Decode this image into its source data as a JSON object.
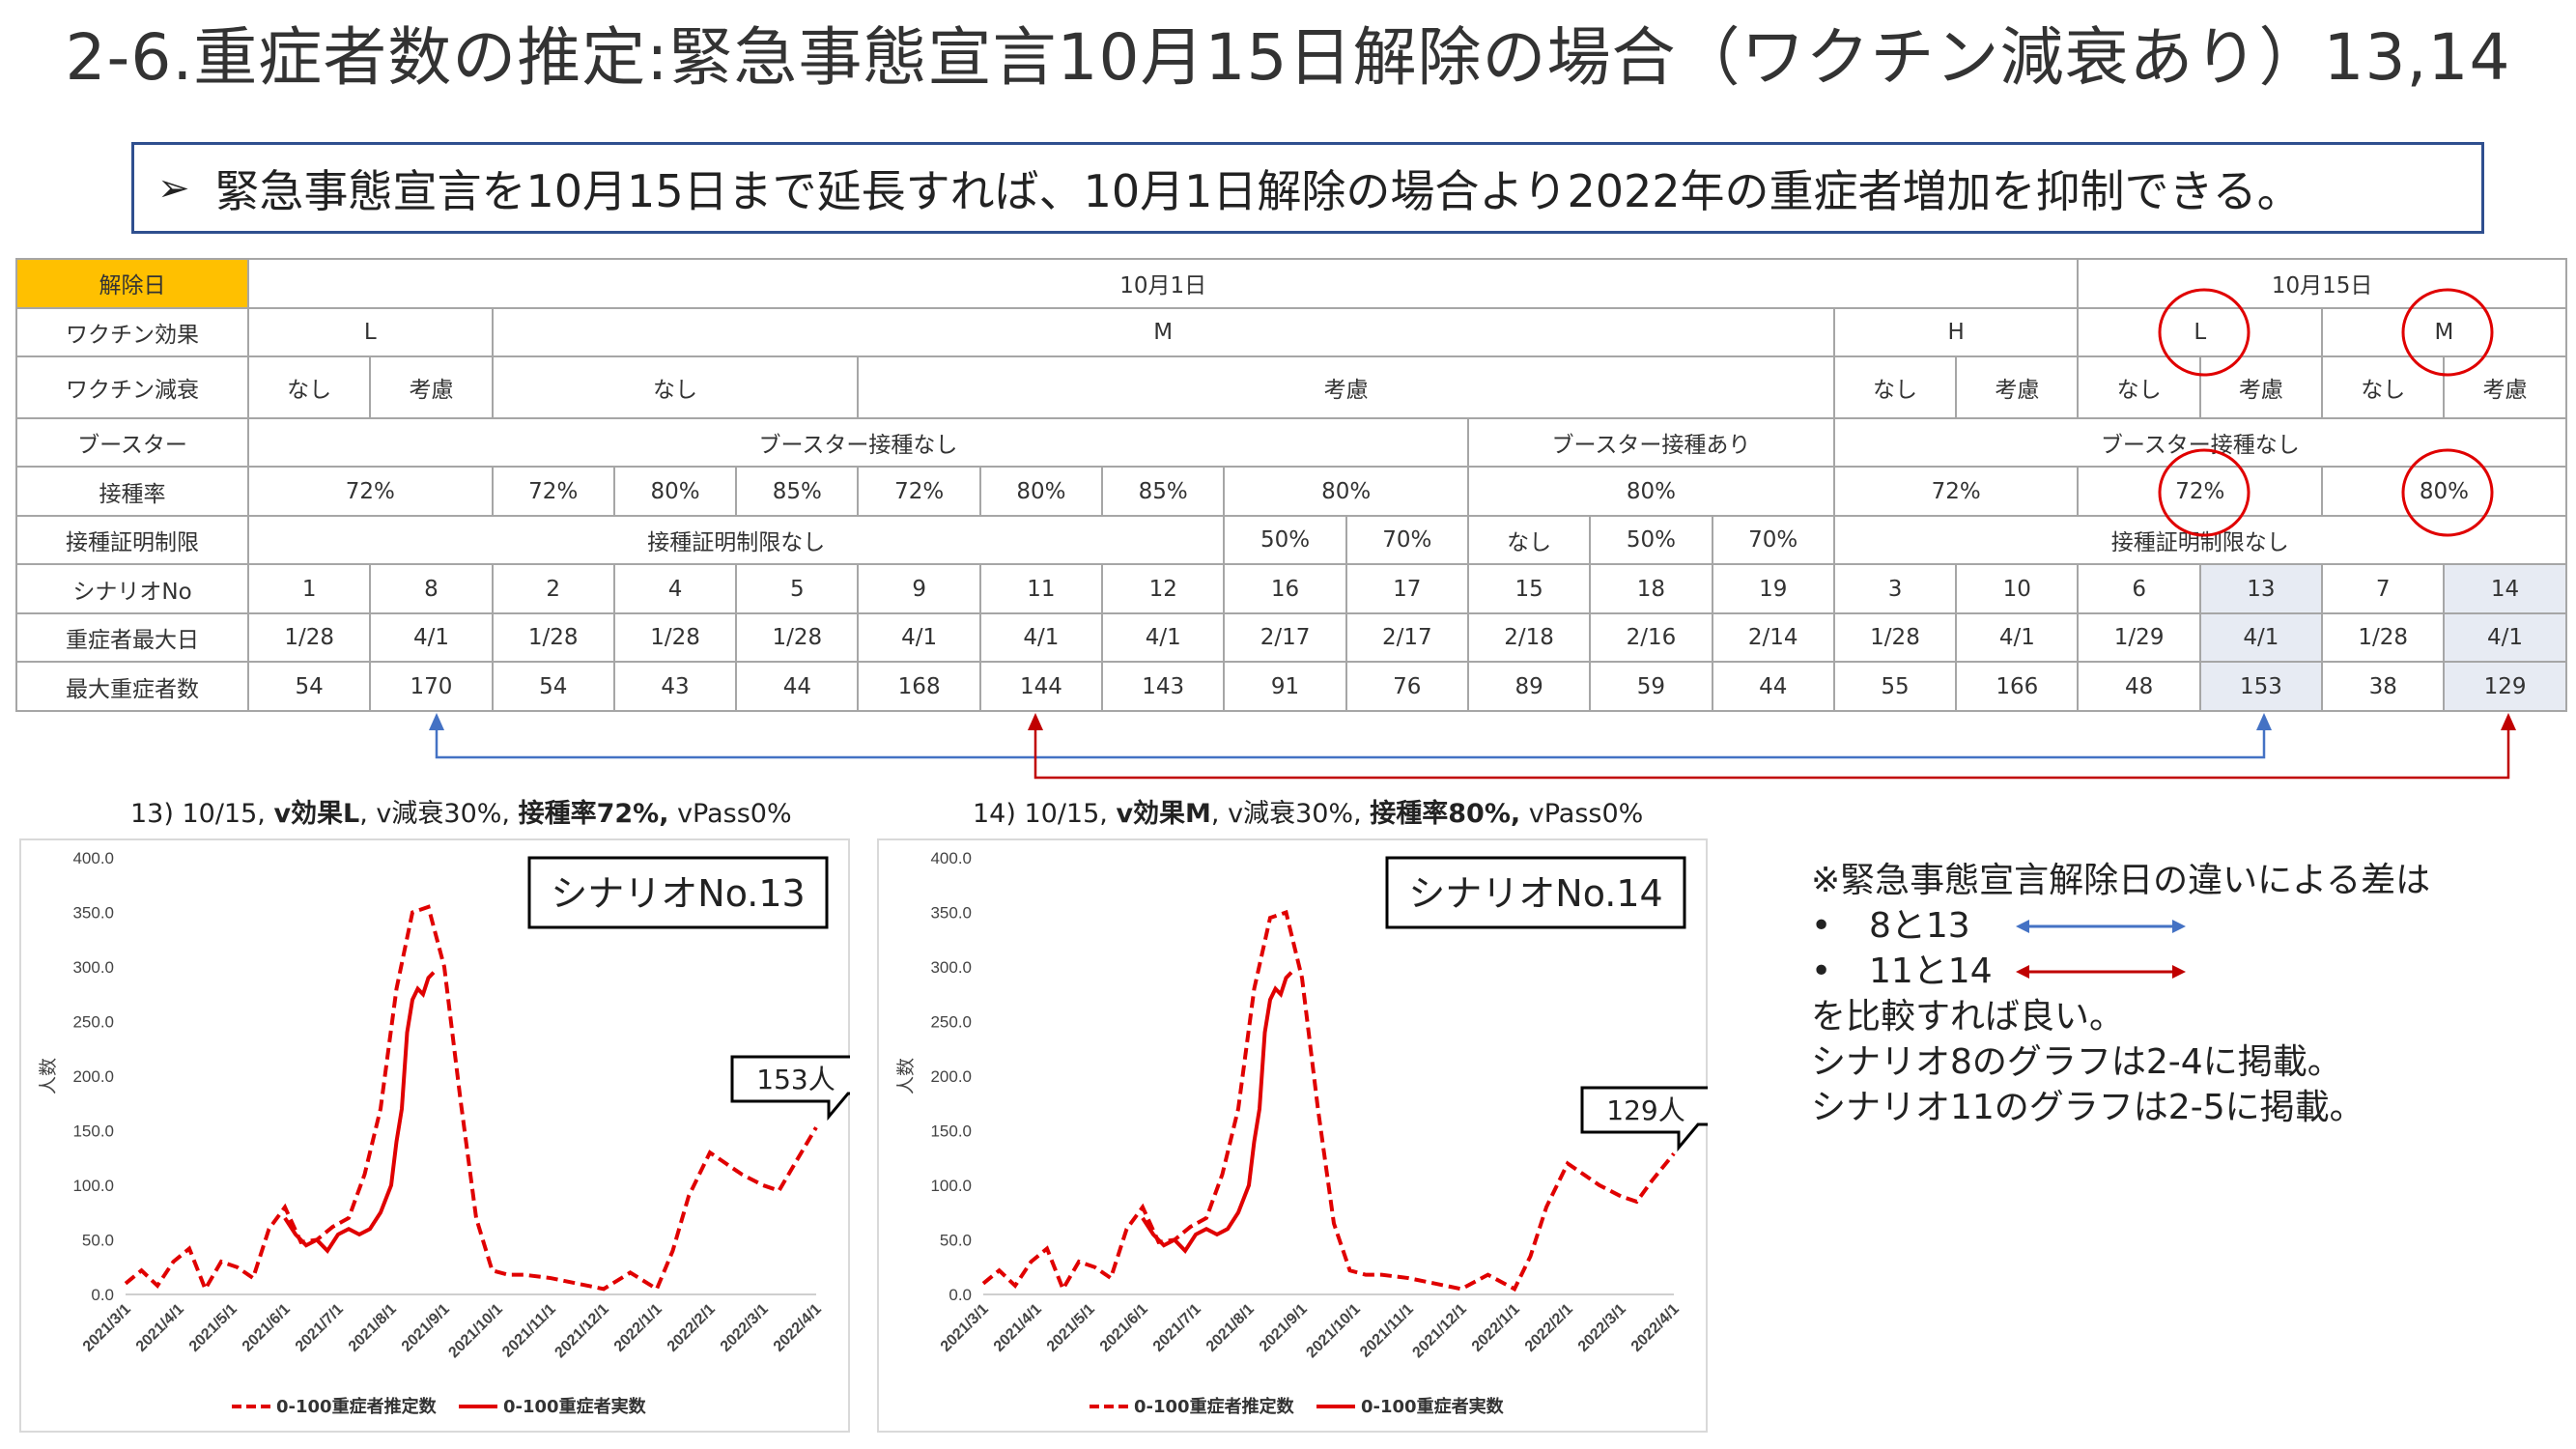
{
  "title": "2-6.重症者数の推定:緊急事態宣言10月15日解除の場合（ワクチン減衰あり）13,14",
  "summary": "緊急事態宣言を10月15日まで延長すれば、10月1日解除の場合より2022年の重症者増加を抑制できる。",
  "summary_bullet": "➢",
  "table": {
    "row_labels": [
      "解除日",
      "ワクチン効果",
      "ワクチン減衰",
      "ブースター",
      "接種率",
      "接種証明制限",
      "シナリオNo",
      "重症者最大日",
      "最大重症者数"
    ],
    "release_dates": [
      "10月1日",
      "10月15日"
    ],
    "vaccine_effect": [
      "L",
      "M",
      "H",
      "L",
      "M"
    ],
    "vaccine_decay": [
      "なし",
      "考慮",
      "なし",
      "考慮",
      "なし",
      "考慮",
      "なし",
      "考慮",
      "なし",
      "考慮"
    ],
    "booster": [
      "ブースター接種なし",
      "ブースター接種あり",
      "ブースター接種なし"
    ],
    "rates": [
      "72%",
      "72%",
      "80%",
      "85%",
      "72%",
      "80%",
      "85%",
      "80%",
      "80%",
      "72%",
      "72%",
      "80%"
    ],
    "cert": [
      "接種証明制限なし",
      "50%",
      "70%",
      "なし",
      "50%",
      "70%",
      "接種証明制限なし"
    ],
    "scenarios": [
      "1",
      "8",
      "2",
      "4",
      "5",
      "9",
      "11",
      "12",
      "16",
      "17",
      "15",
      "18",
      "19",
      "3",
      "10",
      "6",
      "13",
      "7",
      "14"
    ],
    "peak_dates": [
      "1/28",
      "4/1",
      "1/28",
      "1/28",
      "1/28",
      "4/1",
      "4/1",
      "4/1",
      "2/17",
      "2/17",
      "2/18",
      "2/16",
      "2/14",
      "1/28",
      "4/1",
      "1/29",
      "4/1",
      "1/28",
      "4/1"
    ],
    "peak_counts": [
      "54",
      "170",
      "54",
      "43",
      "44",
      "168",
      "144",
      "143",
      "91",
      "76",
      "89",
      "59",
      "44",
      "55",
      "166",
      "48",
      "153",
      "38",
      "129"
    ]
  },
  "colors": {
    "accent_gold": "#ffc000",
    "highlight": "#e7ebf3",
    "blue_arrow": "#4472c4",
    "red_arrow": "#c00000",
    "circle": "#e00000",
    "series_red": "#e00000",
    "box_border": "#2f4f8f"
  },
  "charts": [
    {
      "title_parts": [
        "13) 10/15, ",
        "v効果L",
        ", v減衰30%, ",
        "接種率72%,",
        " vPass0%"
      ],
      "label": "シナリオNo.13",
      "callout": "153人"
    },
    {
      "title_parts": [
        "14) 10/15, ",
        "v効果M",
        ", v減衰30%, ",
        "接種率80%,",
        " vPass0%"
      ],
      "label": "シナリオNo.14",
      "callout": "129人"
    }
  ],
  "chart_data": [
    {
      "type": "line",
      "ylabel": "人数",
      "ylim": [
        0,
        400
      ],
      "yticks": [
        "0.0",
        "50.0",
        "100.0",
        "150.0",
        "200.0",
        "250.0",
        "300.0",
        "350.0",
        "400.0"
      ],
      "categories": [
        "2021/3/1",
        "2021/4/1",
        "2021/5/1",
        "2021/6/1",
        "2021/7/1",
        "2021/8/1",
        "2021/9/1",
        "2021/10/1",
        "2021/11/1",
        "2021/12/1",
        "2022/1/1",
        "2022/2/1",
        "2022/3/1",
        "2022/4/1"
      ],
      "series": [
        {
          "name": "0-100重症者推定数",
          "style": "dashed",
          "x": [
            0,
            0.3,
            0.6,
            0.9,
            1.2,
            1.5,
            1.8,
            2.1,
            2.4,
            2.7,
            3.0,
            3.3,
            3.6,
            3.9,
            4.2,
            4.5,
            4.8,
            5.1,
            5.4,
            5.7,
            6.0,
            6.3,
            6.6,
            6.9,
            7.2,
            7.5,
            8.0,
            8.5,
            9.0,
            9.5,
            10.0,
            10.3,
            10.6,
            11.0,
            11.3,
            11.6,
            12.0,
            12.3,
            12.6,
            13.0
          ],
          "values": [
            10,
            22,
            8,
            30,
            42,
            5,
            30,
            25,
            15,
            60,
            80,
            48,
            50,
            62,
            70,
            110,
            170,
            280,
            350,
            355,
            300,
            180,
            70,
            22,
            18,
            18,
            15,
            10,
            5,
            20,
            5,
            40,
            90,
            130,
            120,
            110,
            100,
            95,
            120,
            153
          ]
        },
        {
          "name": "0-100重症者実数",
          "style": "solid",
          "x": [
            3.0,
            3.2,
            3.4,
            3.6,
            3.8,
            4.0,
            4.2,
            4.4,
            4.6,
            4.8,
            5.0,
            5.1,
            5.2,
            5.3,
            5.4,
            5.5,
            5.6,
            5.7,
            5.8
          ],
          "values": [
            70,
            55,
            45,
            50,
            40,
            55,
            60,
            55,
            60,
            75,
            100,
            140,
            170,
            240,
            270,
            280,
            275,
            290,
            295
          ]
        }
      ]
    },
    {
      "type": "line",
      "ylabel": "人数",
      "ylim": [
        0,
        400
      ],
      "yticks": [
        "0.0",
        "50.0",
        "100.0",
        "150.0",
        "200.0",
        "250.0",
        "300.0",
        "350.0",
        "400.0"
      ],
      "categories": [
        "2021/3/1",
        "2021/4/1",
        "2021/5/1",
        "2021/6/1",
        "2021/7/1",
        "2021/8/1",
        "2021/9/1",
        "2021/10/1",
        "2021/11/1",
        "2021/12/1",
        "2022/1/1",
        "2022/2/1",
        "2022/3/1",
        "2022/4/1"
      ],
      "series": [
        {
          "name": "0-100重症者推定数",
          "style": "dashed",
          "x": [
            0,
            0.3,
            0.6,
            0.9,
            1.2,
            1.5,
            1.8,
            2.1,
            2.4,
            2.7,
            3.0,
            3.3,
            3.6,
            3.9,
            4.2,
            4.5,
            4.8,
            5.1,
            5.4,
            5.7,
            6.0,
            6.3,
            6.6,
            6.9,
            7.2,
            7.5,
            8.0,
            8.5,
            9.0,
            9.5,
            10.0,
            10.3,
            10.6,
            11.0,
            11.3,
            11.6,
            12.0,
            12.3,
            12.6,
            13.0
          ],
          "values": [
            10,
            22,
            8,
            30,
            42,
            5,
            30,
            25,
            15,
            60,
            80,
            48,
            50,
            62,
            70,
            110,
            170,
            280,
            345,
            350,
            290,
            170,
            65,
            22,
            18,
            18,
            15,
            10,
            5,
            18,
            5,
            35,
            80,
            120,
            110,
            100,
            90,
            85,
            105,
            129
          ]
        },
        {
          "name": "0-100重症者実数",
          "style": "solid",
          "x": [
            3.0,
            3.2,
            3.4,
            3.6,
            3.8,
            4.0,
            4.2,
            4.4,
            4.6,
            4.8,
            5.0,
            5.1,
            5.2,
            5.3,
            5.4,
            5.5,
            5.6,
            5.7,
            5.8
          ],
          "values": [
            70,
            55,
            45,
            50,
            40,
            55,
            60,
            55,
            60,
            75,
            100,
            140,
            170,
            240,
            270,
            280,
            275,
            290,
            295
          ]
        }
      ]
    }
  ],
  "notes": {
    "heading": "※緊急事態宣言解除日の違いによる差は",
    "items": [
      {
        "bullet": "•",
        "pair": "8と13",
        "color": "#4472c4"
      },
      {
        "bullet": "•",
        "pair": "11と14",
        "color": "#c00000"
      }
    ],
    "lines": [
      "を比較すれば良い。",
      "シナリオ8のグラフは2-4に掲載。",
      "シナリオ11のグラフは2-5に掲載。"
    ]
  }
}
